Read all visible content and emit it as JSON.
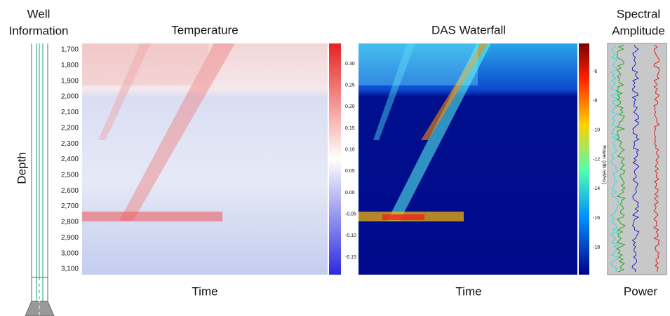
{
  "well": {
    "title_lines": [
      "Well",
      "Information"
    ],
    "axis_label": "Depth",
    "depth_ticks": [
      "1,700",
      "1,800",
      "1,900",
      "2,000",
      "2,100",
      "2,200",
      "2,300",
      "2,400",
      "2,500",
      "2,600",
      "2,700",
      "2,800",
      "2,900",
      "3,000",
      "3,100"
    ]
  },
  "temperature": {
    "title": "Temperature",
    "x_label": "Time",
    "colorbar_ticks": [
      "0.30",
      "0.25",
      "0.20",
      "0.15",
      "0.10",
      "0.05",
      "0.00",
      "-0.05",
      "-0.10",
      "-0.15"
    ]
  },
  "das": {
    "title": "DAS Waterfall",
    "x_label": "Time",
    "colorbar_label": "Power (dB ref/Hz)",
    "colorbar_ticks": [
      "-6",
      "-8",
      "-10",
      "-12",
      "-14",
      "-16",
      "-18"
    ]
  },
  "spectral": {
    "title_lines": [
      "Spectral",
      "Amplitude"
    ],
    "x_label": "Power"
  }
}
